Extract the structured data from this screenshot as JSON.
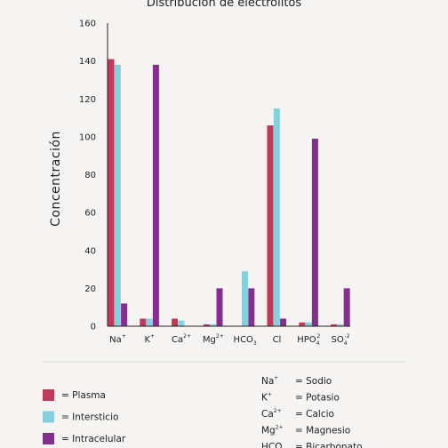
{
  "chart_data": {
    "type": "bar",
    "title": "Distribución de electrolitos",
    "ylabel": "Concentración",
    "xlabel": "",
    "ylim": [
      0,
      160
    ],
    "yticks": [
      0,
      20,
      40,
      60,
      80,
      100,
      120,
      140,
      160
    ],
    "grid": false,
    "categories": [
      {
        "base": "Na",
        "sup": "+",
        "sub": ""
      },
      {
        "base": "K",
        "sup": "+",
        "sub": ""
      },
      {
        "base": "Ca",
        "sup": "2+",
        "sub": ""
      },
      {
        "base": "Mg",
        "sup": "2+",
        "sub": ""
      },
      {
        "base": "HCO",
        "sup": "",
        "sub": "3"
      },
      {
        "base": "Cl",
        "sup": "",
        "sub": ""
      },
      {
        "base": "HPO",
        "sup": "2",
        "sub": "4"
      },
      {
        "base": "SO",
        "sup": "-2",
        "sub": "4"
      }
    ],
    "series": [
      {
        "name": "Plasma",
        "color": "#c0395a",
        "values": [
          141,
          4,
          4,
          1,
          0,
          106,
          2,
          1
        ]
      },
      {
        "name": "Intersticio",
        "color": "#86cfdd",
        "values": [
          138,
          4,
          3,
          1,
          29,
          115,
          2,
          1
        ]
      },
      {
        "name": "Intracelular",
        "color": "#842f8e",
        "values": [
          12,
          138,
          0,
          20,
          20,
          4,
          99,
          20
        ]
      }
    ],
    "legend_position": "bottom-left",
    "abbreviations": [
      {
        "symbol": "Na",
        "sup": "+",
        "sub": "",
        "meaning": "= Sodio"
      },
      {
        "symbol": "K",
        "sup": "+",
        "sub": "",
        "meaning": "= Potasio"
      },
      {
        "symbol": "Ca",
        "sup": "2+",
        "sub": "",
        "meaning": "= Calcio"
      },
      {
        "symbol": "Mg",
        "sup": "2+",
        "sub": "",
        "meaning": "= Magnesio"
      },
      {
        "symbol": "HCO",
        "sup": "",
        "sub": "3",
        "meaning": "= Bicarbonato"
      }
    ]
  }
}
